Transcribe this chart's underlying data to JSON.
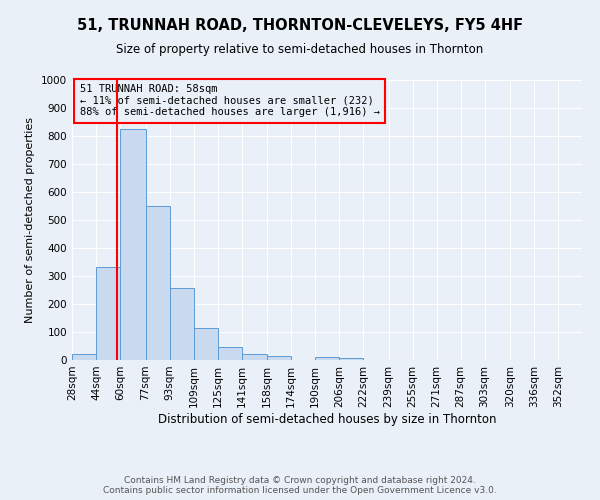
{
  "title1": "51, TRUNNAH ROAD, THORNTON-CLEVELEYS, FY5 4HF",
  "title2": "Size of property relative to semi-detached houses in Thornton",
  "xlabel": "Distribution of semi-detached houses by size in Thornton",
  "ylabel": "Number of semi-detached properties",
  "footnote": "Contains HM Land Registry data © Crown copyright and database right 2024.\nContains public sector information licensed under the Open Government Licence v3.0.",
  "bin_labels": [
    "28sqm",
    "44sqm",
    "60sqm",
    "77sqm",
    "93sqm",
    "109sqm",
    "125sqm",
    "141sqm",
    "158sqm",
    "174sqm",
    "190sqm",
    "206sqm",
    "222sqm",
    "239sqm",
    "255sqm",
    "271sqm",
    "287sqm",
    "303sqm",
    "320sqm",
    "336sqm",
    "352sqm"
  ],
  "bin_edges": [
    28,
    44,
    60,
    77,
    93,
    109,
    125,
    141,
    158,
    174,
    190,
    206,
    222,
    239,
    255,
    271,
    287,
    303,
    320,
    336,
    352
  ],
  "bar_values": [
    22,
    332,
    826,
    550,
    258,
    116,
    45,
    22,
    14,
    0,
    12,
    7,
    0,
    0,
    0,
    0,
    0,
    0,
    0,
    0
  ],
  "bar_color": "#c9d9f0",
  "bar_edge_color": "#5b9bd5",
  "property_size": 58,
  "annotation_title": "51 TRUNNAH ROAD: 58sqm",
  "annotation_line1": "← 11% of semi-detached houses are smaller (232)",
  "annotation_line2": "88% of semi-detached houses are larger (1,916) →",
  "vline_color": "red",
  "annotation_box_color": "red",
  "ylim": [
    0,
    1000
  ],
  "yticks": [
    0,
    100,
    200,
    300,
    400,
    500,
    600,
    700,
    800,
    900,
    1000
  ],
  "background_color": "#eaf0f8",
  "grid_color": "white",
  "title1_fontsize": 10.5,
  "title2_fontsize": 8.5,
  "ylabel_fontsize": 8.0,
  "xlabel_fontsize": 8.5,
  "tick_fontsize": 7.5,
  "annotation_fontsize": 7.5,
  "footnote_fontsize": 6.5
}
